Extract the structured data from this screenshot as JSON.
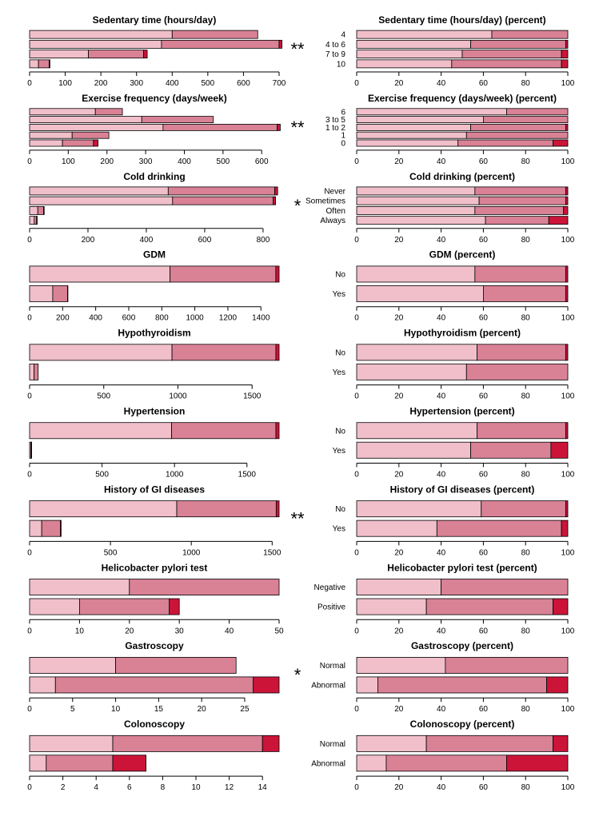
{
  "colors": {
    "level1": "#f0bfca",
    "level2": "#d98195",
    "level3": "#cc1439"
  },
  "chart_data": [
    {
      "type": "bar",
      "stacked": true,
      "orientation": "horizontal",
      "title": "Sedentary time (hours/day)",
      "significance": "**",
      "categories": [
        "",
        "",
        "",
        ""
      ],
      "series": [
        {
          "values": [
            400,
            370,
            165,
            25
          ]
        },
        {
          "values": [
            240,
            330,
            155,
            30
          ]
        },
        {
          "values": [
            0,
            8,
            10,
            2
          ]
        }
      ],
      "xlim": [
        0,
        700
      ],
      "xticks": [
        0,
        100,
        200,
        300,
        400,
        500,
        600,
        700
      ]
    },
    {
      "type": "bar",
      "stacked": true,
      "orientation": "horizontal",
      "title": "Sedentary time (hours/day) (percent)",
      "categories": [
        "4",
        "4 to 6",
        "7 to 9",
        "10"
      ],
      "series": [
        {
          "values": [
            64,
            54,
            50,
            45
          ]
        },
        {
          "values": [
            36,
            45,
            47,
            52
          ]
        },
        {
          "values": [
            0,
            1,
            3,
            3
          ]
        }
      ],
      "xlim": [
        0,
        100
      ],
      "xticks": [
        0,
        20,
        40,
        60,
        80,
        100
      ]
    },
    {
      "type": "bar",
      "stacked": true,
      "orientation": "horizontal",
      "title": "Exercise frequency (days/week)",
      "significance": "**",
      "categories": [
        "",
        "",
        "",
        "",
        ""
      ],
      "series": [
        {
          "values": [
            170,
            290,
            345,
            110,
            85
          ]
        },
        {
          "values": [
            70,
            185,
            295,
            95,
            80
          ]
        },
        {
          "values": [
            0,
            0,
            8,
            0,
            12
          ]
        }
      ],
      "xlim": [
        0,
        645
      ],
      "xticks": [
        0,
        100,
        200,
        300,
        400,
        500,
        600
      ]
    },
    {
      "type": "bar",
      "stacked": true,
      "orientation": "horizontal",
      "title": "Exercise frequency (days/week) (percent)",
      "categories": [
        "6",
        "3 to 5",
        "1 to 2",
        "1",
        "0"
      ],
      "series": [
        {
          "values": [
            71,
            60,
            54,
            52,
            48
          ]
        },
        {
          "values": [
            29,
            40,
            45,
            48,
            45
          ]
        },
        {
          "values": [
            0,
            0,
            1,
            0,
            7
          ]
        }
      ],
      "xlim": [
        0,
        100
      ],
      "xticks": [
        0,
        20,
        40,
        60,
        80,
        100
      ]
    },
    {
      "type": "bar",
      "stacked": true,
      "orientation": "horizontal",
      "title": "Cold drinking",
      "significance": "*",
      "categories": [
        "",
        "",
        "",
        ""
      ],
      "series": [
        {
          "values": [
            475,
            490,
            28,
            16
          ]
        },
        {
          "values": [
            365,
            345,
            20,
            8
          ]
        },
        {
          "values": [
            10,
            8,
            2,
            2
          ]
        }
      ],
      "xlim": [
        0,
        855
      ],
      "xticks": [
        0,
        200,
        400,
        600,
        800
      ]
    },
    {
      "type": "bar",
      "stacked": true,
      "orientation": "horizontal",
      "title": "Cold drinking (percent)",
      "categories": [
        "Never",
        "Sometimes",
        "Often",
        "Always"
      ],
      "series": [
        {
          "values": [
            56,
            58,
            56,
            61
          ]
        },
        {
          "values": [
            43,
            41,
            42,
            30
          ]
        },
        {
          "values": [
            1,
            1,
            2,
            9
          ]
        }
      ],
      "xlim": [
        0,
        100
      ],
      "xticks": [
        0,
        20,
        40,
        60,
        80,
        100
      ]
    },
    {
      "type": "bar",
      "stacked": true,
      "orientation": "horizontal",
      "title": "GDM",
      "categories": [
        "",
        ""
      ],
      "series": [
        {
          "values": [
            850,
            140
          ]
        },
        {
          "values": [
            640,
            90
          ]
        },
        {
          "values": [
            20,
            2
          ]
        }
      ],
      "xlim": [
        0,
        1510
      ],
      "xticks": [
        0,
        200,
        400,
        600,
        800,
        1000,
        1200,
        1400
      ]
    },
    {
      "type": "bar",
      "stacked": true,
      "orientation": "horizontal",
      "title": "GDM (percent)",
      "categories": [
        "No",
        "Yes"
      ],
      "series": [
        {
          "values": [
            56,
            60
          ]
        },
        {
          "values": [
            43,
            39
          ]
        },
        {
          "values": [
            1,
            1
          ]
        }
      ],
      "xlim": [
        0,
        100
      ],
      "xticks": [
        0,
        20,
        40,
        60,
        80,
        100
      ]
    },
    {
      "type": "bar",
      "stacked": true,
      "orientation": "horizontal",
      "title": "Hypothyroidism",
      "categories": [
        "",
        ""
      ],
      "series": [
        {
          "values": [
            960,
            30
          ]
        },
        {
          "values": [
            700,
            28
          ]
        },
        {
          "values": [
            22,
            0
          ]
        }
      ],
      "xlim": [
        0,
        1682
      ],
      "xticks": [
        0,
        500,
        1000,
        1500
      ]
    },
    {
      "type": "bar",
      "stacked": true,
      "orientation": "horizontal",
      "title": "Hypothyroidism (percent)",
      "categories": [
        "No",
        "Yes"
      ],
      "series": [
        {
          "values": [
            57,
            52
          ]
        },
        {
          "values": [
            42,
            48
          ]
        },
        {
          "values": [
            1,
            0
          ]
        }
      ],
      "xlim": [
        0,
        100
      ],
      "xticks": [
        0,
        20,
        40,
        60,
        80,
        100
      ]
    },
    {
      "type": "bar",
      "stacked": true,
      "orientation": "horizontal",
      "title": "Hypertension",
      "categories": [
        "",
        ""
      ],
      "series": [
        {
          "values": [
            980,
            8
          ]
        },
        {
          "values": [
            720,
            5
          ]
        },
        {
          "values": [
            22,
            1
          ]
        }
      ],
      "xlim": [
        0,
        1722
      ],
      "xticks": [
        0,
        500,
        1000,
        1500
      ]
    },
    {
      "type": "bar",
      "stacked": true,
      "orientation": "horizontal",
      "title": "Hypertension (percent)",
      "categories": [
        "No",
        "Yes"
      ],
      "series": [
        {
          "values": [
            57,
            54
          ]
        },
        {
          "values": [
            42,
            38
          ]
        },
        {
          "values": [
            1,
            8
          ]
        }
      ],
      "xlim": [
        0,
        100
      ],
      "xticks": [
        0,
        20,
        40,
        60,
        80,
        100
      ]
    },
    {
      "type": "bar",
      "stacked": true,
      "orientation": "horizontal",
      "title": "History of GI diseases",
      "significance": "**",
      "categories": [
        "",
        ""
      ],
      "series": [
        {
          "values": [
            910,
            75
          ]
        },
        {
          "values": [
            615,
            115
          ]
        },
        {
          "values": [
            18,
            5
          ]
        }
      ],
      "xlim": [
        0,
        1543
      ],
      "xticks": [
        0,
        500,
        1000,
        1500
      ]
    },
    {
      "type": "bar",
      "stacked": true,
      "orientation": "horizontal",
      "title": "History of GI diseases (percent)",
      "categories": [
        "No",
        "Yes"
      ],
      "series": [
        {
          "values": [
            59,
            38
          ]
        },
        {
          "values": [
            40,
            59
          ]
        },
        {
          "values": [
            1,
            3
          ]
        }
      ],
      "xlim": [
        0,
        100
      ],
      "xticks": [
        0,
        20,
        40,
        60,
        80,
        100
      ]
    },
    {
      "type": "bar",
      "stacked": true,
      "orientation": "horizontal",
      "title": "Helicobacter pylori test",
      "categories": [
        "",
        ""
      ],
      "series": [
        {
          "values": [
            20,
            10
          ]
        },
        {
          "values": [
            30,
            18
          ]
        },
        {
          "values": [
            0,
            2
          ]
        }
      ],
      "xlim": [
        0,
        50
      ],
      "xticks": [
        0,
        10,
        20,
        30,
        40,
        50
      ]
    },
    {
      "type": "bar",
      "stacked": true,
      "orientation": "horizontal",
      "title": "Helicobacter pylori test (percent)",
      "categories": [
        "Negative",
        "Positive"
      ],
      "series": [
        {
          "values": [
            40,
            33
          ]
        },
        {
          "values": [
            60,
            60
          ]
        },
        {
          "values": [
            0,
            7
          ]
        }
      ],
      "xlim": [
        0,
        100
      ],
      "xticks": [
        0,
        20,
        40,
        60,
        80,
        100
      ]
    },
    {
      "type": "bar",
      "stacked": true,
      "orientation": "horizontal",
      "title": "Gastroscopy",
      "significance": "*",
      "categories": [
        "",
        ""
      ],
      "series": [
        {
          "values": [
            10,
            3
          ]
        },
        {
          "values": [
            14,
            23
          ]
        },
        {
          "values": [
            0,
            3
          ]
        }
      ],
      "xlim": [
        0,
        29
      ],
      "xticks": [
        0,
        5,
        10,
        15,
        20,
        25
      ]
    },
    {
      "type": "bar",
      "stacked": true,
      "orientation": "horizontal",
      "title": "Gastroscopy (percent)",
      "categories": [
        "Normal",
        "Abnormal"
      ],
      "series": [
        {
          "values": [
            42,
            10
          ]
        },
        {
          "values": [
            58,
            80
          ]
        },
        {
          "values": [
            0,
            10
          ]
        }
      ],
      "xlim": [
        0,
        100
      ],
      "xticks": [
        0,
        20,
        40,
        60,
        80,
        100
      ]
    },
    {
      "type": "bar",
      "stacked": true,
      "orientation": "horizontal",
      "title": "Colonoscopy",
      "categories": [
        "",
        ""
      ],
      "series": [
        {
          "values": [
            5,
            1
          ]
        },
        {
          "values": [
            9,
            4
          ]
        },
        {
          "values": [
            1,
            2
          ]
        }
      ],
      "xlim": [
        0,
        15
      ],
      "xticks": [
        0,
        2,
        4,
        6,
        8,
        10,
        12,
        14
      ]
    },
    {
      "type": "bar",
      "stacked": true,
      "orientation": "horizontal",
      "title": "Colonoscopy (percent)",
      "categories": [
        "Normal",
        "Abnormal"
      ],
      "series": [
        {
          "values": [
            33,
            14
          ]
        },
        {
          "values": [
            60,
            57
          ]
        },
        {
          "values": [
            7,
            29
          ]
        }
      ],
      "xlim": [
        0,
        100
      ],
      "xticks": [
        0,
        20,
        40,
        60,
        80,
        100
      ]
    }
  ]
}
